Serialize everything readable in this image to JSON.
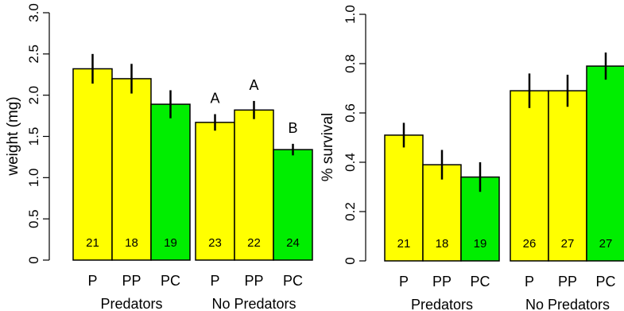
{
  "colors": {
    "prey": "#ffff00",
    "control": "#00ee00",
    "axis": "#000000"
  },
  "chart_data": [
    {
      "type": "bar",
      "ylabel": "weight (mg)",
      "ylim": [
        0,
        3.0
      ],
      "yticks": [
        "0",
        "0.5",
        "1.0",
        "1.5",
        "2.0",
        "2.5",
        "3.0"
      ],
      "ytick_values": [
        0,
        0.5,
        1.0,
        1.5,
        2.0,
        2.5,
        3.0
      ],
      "groups": [
        {
          "label": "Predators",
          "bars": [
            {
              "category": "P",
              "value": 2.32,
              "err": 0.18,
              "n": "21",
              "color": "prey",
              "letter": ""
            },
            {
              "category": "PP",
              "value": 2.2,
              "err": 0.18,
              "n": "18",
              "color": "prey",
              "letter": ""
            },
            {
              "category": "PC",
              "value": 1.89,
              "err": 0.17,
              "n": "19",
              "color": "control",
              "letter": ""
            }
          ]
        },
        {
          "label": "No Predators",
          "bars": [
            {
              "category": "P",
              "value": 1.67,
              "err": 0.1,
              "n": "23",
              "color": "prey",
              "letter": "A"
            },
            {
              "category": "PP",
              "value": 1.82,
              "err": 0.11,
              "n": "22",
              "color": "prey",
              "letter": "A"
            },
            {
              "category": "PC",
              "value": 1.34,
              "err": 0.07,
              "n": "24",
              "color": "control",
              "letter": "B"
            }
          ]
        }
      ]
    },
    {
      "type": "bar",
      "ylabel": "% survival",
      "ylim": [
        0,
        1.0
      ],
      "yticks": [
        "0",
        "0.2",
        "0.4",
        "0.6",
        "0.8",
        "1.0"
      ],
      "ytick_values": [
        0,
        0.2,
        0.4,
        0.6,
        0.8,
        1.0
      ],
      "groups": [
        {
          "label": "Predators",
          "bars": [
            {
              "category": "P",
              "value": 0.51,
              "err": 0.05,
              "n": "21",
              "color": "prey",
              "letter": ""
            },
            {
              "category": "PP",
              "value": 0.39,
              "err": 0.06,
              "n": "18",
              "color": "prey",
              "letter": ""
            },
            {
              "category": "PC",
              "value": 0.34,
              "err": 0.06,
              "n": "19",
              "color": "control",
              "letter": ""
            }
          ]
        },
        {
          "label": "No Predators",
          "bars": [
            {
              "category": "P",
              "value": 0.69,
              "err": 0.07,
              "n": "26",
              "color": "prey",
              "letter": ""
            },
            {
              "category": "PP",
              "value": 0.69,
              "err": 0.065,
              "n": "27",
              "color": "prey",
              "letter": ""
            },
            {
              "category": "PC",
              "value": 0.79,
              "err": 0.055,
              "n": "27",
              "color": "control",
              "letter": ""
            }
          ]
        }
      ]
    }
  ]
}
